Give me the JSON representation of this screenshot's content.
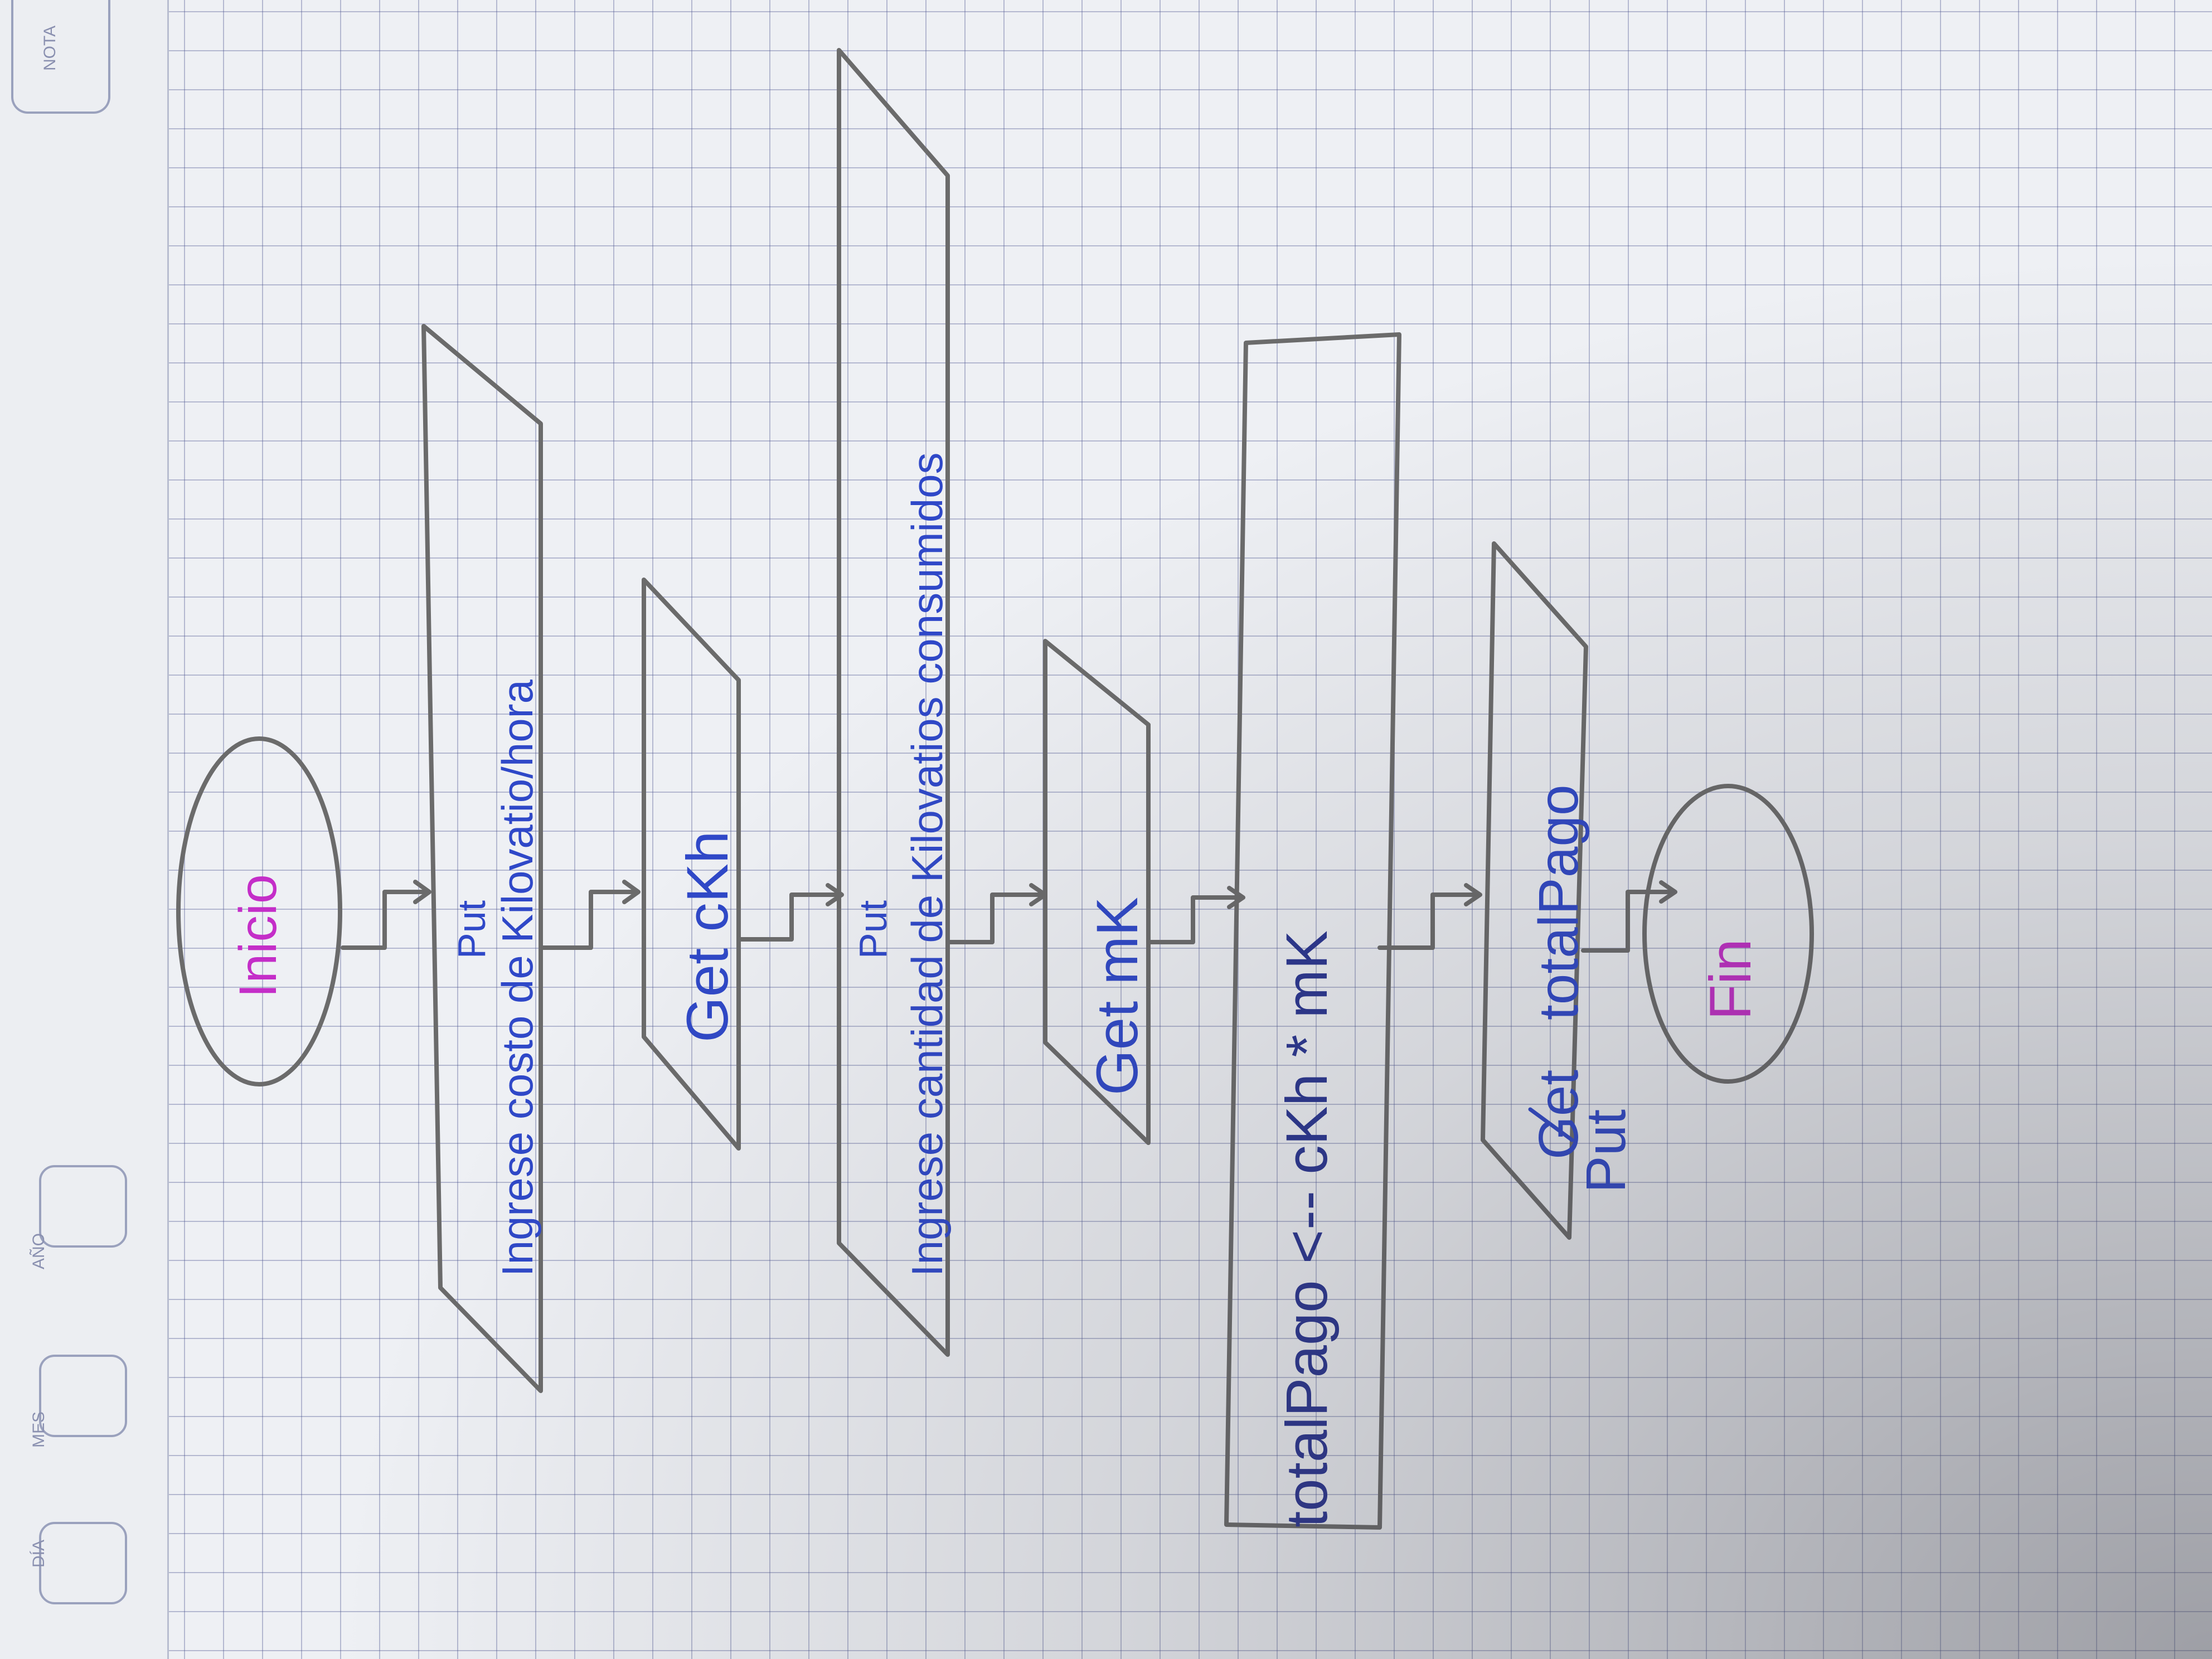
{
  "paper_labels": {
    "dia": "DÍA",
    "mes": "MES",
    "ano": "AÑO",
    "nota": "NOTA"
  },
  "flowchart": {
    "start": "Inicio",
    "step1_keyword": "Put",
    "step1_text": "Ingrese costo de Kilovatio/hora",
    "step2_text": "Get cKh",
    "step3_keyword": "Put",
    "step3_text": "Ingrese cantidad de Kilovatios consumidos",
    "step4_text": "Get mK",
    "process_text": "totalPago <-- cKh * mK",
    "output_struck": "Get",
    "output_keyword": "Put",
    "output_text": "totalPago",
    "end": "Fin"
  },
  "colors": {
    "grid": "#5a64a0",
    "pencil": "#6b6b6b",
    "ink_blue": "#2f48c8",
    "ink_purple": "#c42ec8"
  }
}
